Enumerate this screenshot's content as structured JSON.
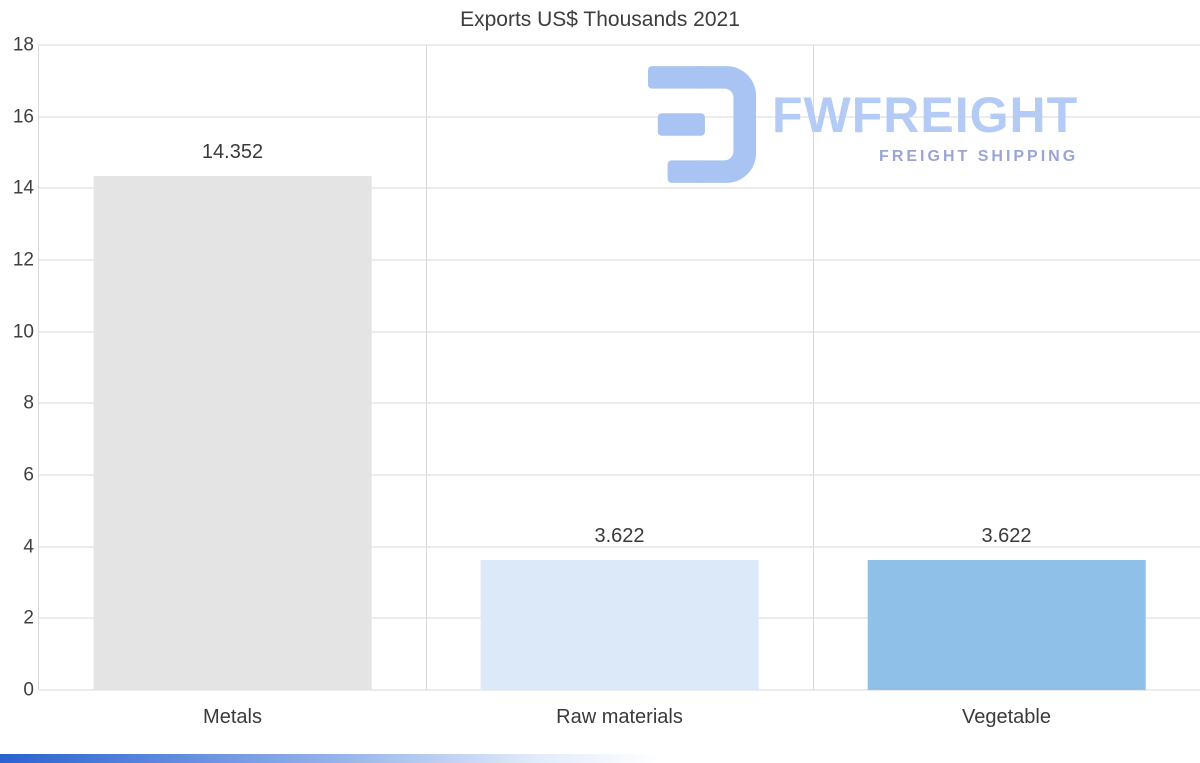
{
  "title": "Exports US$ Thousands 2021",
  "watermark": {
    "brand": "FWFREIGHT",
    "tagline": "FREIGHT SHIPPING"
  },
  "chart_data": {
    "type": "bar",
    "title": "Exports US$ Thousands 2021",
    "categories": [
      "Metals",
      "Raw materials",
      "Vegetable"
    ],
    "values": [
      14.352,
      3.622,
      3.622
    ],
    "value_labels": [
      "14.352",
      "3.622",
      "3.622"
    ],
    "bar_colors": [
      "#e4e4e4",
      "#dbe9f9",
      "#8fc1e8"
    ],
    "xlabel": "",
    "ylabel": "",
    "ylim": [
      0,
      18
    ],
    "yticks": [
      0,
      2,
      4,
      6,
      8,
      10,
      12,
      14,
      16,
      18
    ],
    "grid": true,
    "legend": "none"
  },
  "colors": {
    "title_text": "#3d3d3d",
    "axis_text": "#3f3f3f",
    "gridline": "#d9d9d9",
    "watermark_brand": "#b3cbf5",
    "watermark_tagline": "#9aa5d6",
    "bottom_strip_blue": "#2b62ce"
  }
}
